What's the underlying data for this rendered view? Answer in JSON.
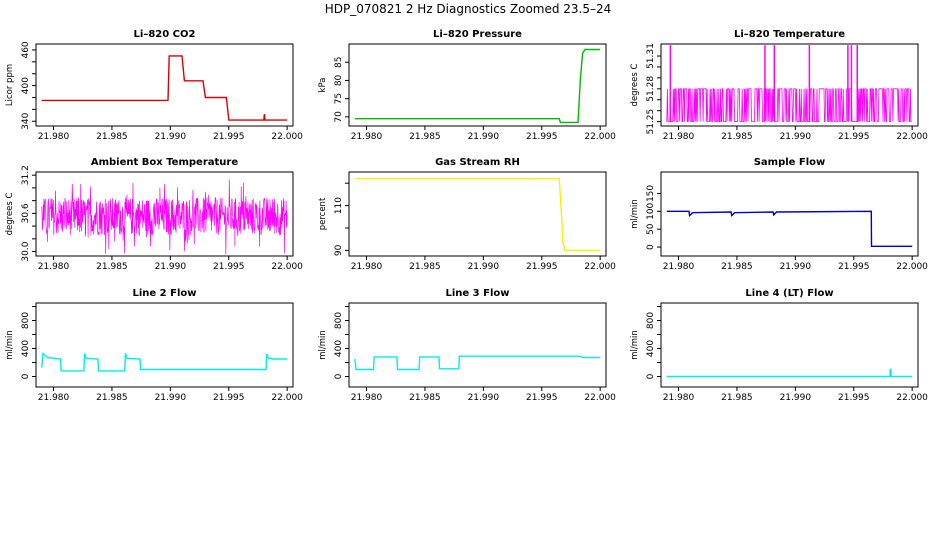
{
  "title": "HDP_070821  2 Hz Diagnostics Zoomed 23.5–24",
  "colors": {
    "red": "#dd0000",
    "green": "#00bb00",
    "magenta": "#ff00ff",
    "yellow": "#ffee00",
    "blue": "#0000cc",
    "cyan": "#00eeee"
  },
  "chart_data": [
    {
      "type": "line",
      "title": "Li–820 CO2",
      "ylabel": "Licor ppm",
      "color": "red",
      "xlim": [
        21.9785,
        22.0005
      ],
      "ylim": [
        332,
        470
      ],
      "xticks": [
        "21.980",
        "21.985",
        "21.990",
        "21.995",
        "22.000"
      ],
      "xtick_values": [
        21.98,
        21.985,
        21.99,
        21.995,
        22.0
      ],
      "yticks": [
        "340",
        "400",
        "460"
      ],
      "ytick_values": [
        340,
        400,
        460
      ],
      "minor_yticks": [
        360,
        380,
        420,
        440
      ],
      "series": [
        {
          "x": [
            21.979,
            21.9898,
            21.9899,
            21.991,
            21.9912,
            21.9928,
            21.993,
            21.9948,
            21.995,
            21.998,
            21.99805,
            21.9981,
            21.9983,
            22.0
          ],
          "y": [
            375,
            375,
            450,
            450,
            408,
            408,
            380,
            380,
            342,
            342,
            352,
            342,
            342,
            342
          ]
        }
      ]
    },
    {
      "type": "line",
      "title": "Li–820 Pressure",
      "ylabel": "kPa",
      "color": "green",
      "xlim": [
        21.9785,
        22.0005
      ],
      "ylim": [
        67.5,
        90
      ],
      "xticks": [
        "21.980",
        "21.985",
        "21.990",
        "21.995",
        "22.000"
      ],
      "xtick_values": [
        21.98,
        21.985,
        21.99,
        21.995,
        22.0
      ],
      "yticks": [
        "70",
        "75",
        "80",
        "85"
      ],
      "ytick_values": [
        70,
        75,
        80,
        85
      ],
      "series": [
        {
          "x": [
            21.979,
            21.9965,
            21.9966,
            21.9981,
            21.9983,
            21.9985,
            21.9987,
            22.0
          ],
          "y": [
            69.5,
            69.5,
            68.5,
            68.5,
            80,
            87.5,
            88.5,
            88.5
          ]
        }
      ]
    },
    {
      "type": "line",
      "title": "Li–820 Temperature",
      "ylabel": "degrees C",
      "color": "magenta",
      "xlim": [
        21.9785,
        22.0005
      ],
      "ylim": [
        51.246,
        51.321
      ],
      "xticks": [
        "21.980",
        "21.985",
        "21.990",
        "21.995",
        "22.000"
      ],
      "xtick_values": [
        21.98,
        21.985,
        21.99,
        21.995,
        22.0
      ],
      "yticks": [
        "51.25",
        "51.28",
        "51.31"
      ],
      "ytick_values": [
        51.25,
        51.28,
        51.31
      ],
      "minor_yticks": [
        51.26,
        51.27,
        51.29,
        51.3
      ],
      "levels": {
        "low": 51.25,
        "high": 51.28,
        "spike": 51.32
      },
      "spikes_x": [
        21.9793,
        21.9874,
        21.9882,
        21.9912,
        21.9945,
        21.9948,
        21.9953
      ]
    },
    {
      "type": "line",
      "title": "Ambient Box Temperature",
      "ylabel": "degrees C",
      "color": "magenta",
      "xlim": [
        21.9785,
        22.0005
      ],
      "ylim": [
        29.93,
        31.25
      ],
      "xticks": [
        "21.980",
        "21.985",
        "21.990",
        "21.995",
        "22.000"
      ],
      "xtick_values": [
        21.98,
        21.985,
        21.99,
        21.995,
        22.0
      ],
      "yticks": [
        "30.0",
        "30.6",
        "31.2"
      ],
      "ytick_values": [
        30.0,
        30.6,
        31.2
      ],
      "minor_yticks": [
        30.2,
        30.4,
        30.8,
        31.0
      ],
      "noise": {
        "center": 30.55,
        "amplitude": 0.3
      }
    },
    {
      "type": "line",
      "title": "Gas Stream RH",
      "ylabel": "percent",
      "color": "yellow",
      "xlim": [
        21.9785,
        22.0005
      ],
      "ylim": [
        87.5,
        125
      ],
      "xticks": [
        "21.980",
        "21.985",
        "21.990",
        "21.995",
        "22.000"
      ],
      "xtick_values": [
        21.98,
        21.985,
        21.99,
        21.995,
        22.0
      ],
      "yticks": [
        "90",
        "110"
      ],
      "ytick_values": [
        90,
        110
      ],
      "minor_yticks": [
        100,
        120
      ],
      "series": [
        {
          "x": [
            21.979,
            21.9965,
            21.9967,
            21.9968,
            21.9969,
            21.99695,
            22.0
          ],
          "y": [
            122,
            122,
            105,
            94,
            92,
            90,
            90
          ]
        }
      ]
    },
    {
      "type": "line",
      "title": "Sample Flow",
      "ylabel": "ml/min",
      "color": "blue",
      "xlim": [
        21.9785,
        22.0005
      ],
      "ylim": [
        -25,
        210
      ],
      "xticks": [
        "21.980",
        "21.985",
        "21.990",
        "21.995",
        "22.000"
      ],
      "xtick_values": [
        21.98,
        21.985,
        21.99,
        21.995,
        22.0
      ],
      "yticks": [
        "0",
        "50",
        "100",
        "150"
      ],
      "ytick_values": [
        0,
        50,
        100,
        150
      ],
      "series": [
        {
          "x": [
            21.979,
            21.9809,
            21.98095,
            21.9812,
            21.9845,
            21.98455,
            21.9848,
            21.9881,
            21.98815,
            21.9884,
            21.9965,
            21.99652,
            22.0
          ],
          "y": [
            100,
            100,
            88,
            96,
            98,
            88,
            96,
            98,
            90,
            98,
            100,
            2,
            2
          ]
        }
      ]
    },
    {
      "type": "line",
      "title": "Line 2 Flow",
      "ylabel": "ml/min",
      "color": "cyan",
      "xlim": [
        21.9785,
        22.0005
      ],
      "ylim": [
        -150,
        1050
      ],
      "xticks": [
        "21.980",
        "21.985",
        "21.990",
        "21.995",
        "22.000"
      ],
      "xtick_values": [
        21.98,
        21.985,
        21.99,
        21.995,
        22.0
      ],
      "yticks": [
        "0",
        "400",
        "800"
      ],
      "ytick_values": [
        0,
        400,
        800
      ],
      "minor_yticks": [
        200,
        600,
        1000
      ],
      "series": [
        {
          "x": [
            21.979,
            21.9791,
            21.9795,
            21.9806,
            21.98065,
            21.9826,
            21.98265,
            21.9828,
            21.9838,
            21.98385,
            21.9861,
            21.98615,
            21.9863,
            21.9874,
            21.98745,
            21.9982,
            21.99825,
            21.9984,
            21.9988,
            22.0
          ],
          "y": [
            130,
            330,
            270,
            250,
            80,
            80,
            330,
            260,
            250,
            80,
            80,
            330,
            260,
            250,
            100,
            100,
            320,
            260,
            250,
            250
          ]
        }
      ]
    },
    {
      "type": "line",
      "title": "Line 3 Flow",
      "ylabel": "ml/min",
      "color": "cyan",
      "xlim": [
        21.9785,
        22.0005
      ],
      "ylim": [
        -150,
        1050
      ],
      "xticks": [
        "21.980",
        "21.985",
        "21.990",
        "21.995",
        "22.000"
      ],
      "xtick_values": [
        21.98,
        21.985,
        21.99,
        21.995,
        22.0
      ],
      "yticks": [
        "0",
        "400",
        "800"
      ],
      "ytick_values": [
        0,
        400,
        800
      ],
      "minor_yticks": [
        200,
        600,
        1000
      ],
      "series": [
        {
          "x": [
            21.979,
            21.9791,
            21.9806,
            21.98065,
            21.9826,
            21.98265,
            21.9845,
            21.98455,
            21.9862,
            21.98625,
            21.9879,
            21.98795,
            21.9982,
            21.9986,
            22.0
          ],
          "y": [
            250,
            100,
            100,
            280,
            280,
            100,
            100,
            280,
            280,
            110,
            110,
            290,
            290,
            270,
            270
          ]
        }
      ]
    },
    {
      "type": "line",
      "title": "Line 4 (LT) Flow",
      "ylabel": "ml/min",
      "color": "cyan",
      "xlim": [
        21.9785,
        22.0005
      ],
      "ylim": [
        -150,
        1050
      ],
      "xticks": [
        "21.980",
        "21.985",
        "21.990",
        "21.995",
        "22.000"
      ],
      "xtick_values": [
        21.98,
        21.985,
        21.99,
        21.995,
        22.0
      ],
      "yticks": [
        "0",
        "400",
        "800"
      ],
      "ytick_values": [
        0,
        400,
        800
      ],
      "minor_yticks": [
        200,
        600,
        1000
      ],
      "series": [
        {
          "x": [
            21.979,
            21.9981,
            21.99812,
            21.99818,
            21.9982,
            22.0
          ],
          "y": [
            0,
            0,
            100,
            100,
            0,
            0
          ]
        }
      ]
    }
  ]
}
